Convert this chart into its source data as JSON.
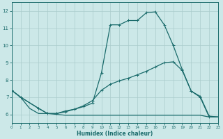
{
  "xlabel": "Humidex (Indice chaleur)",
  "xlim": [
    0,
    23
  ],
  "ylim": [
    5.5,
    12.5
  ],
  "yticks": [
    6,
    7,
    8,
    9,
    10,
    11,
    12
  ],
  "xticks": [
    0,
    1,
    2,
    3,
    4,
    5,
    6,
    7,
    8,
    9,
    10,
    11,
    12,
    13,
    14,
    15,
    16,
    17,
    18,
    19,
    20,
    21,
    22,
    23
  ],
  "background_color": "#cce8e8",
  "grid_color": "#aacccc",
  "line_color": "#1a6b6b",
  "line1_x": [
    0,
    1,
    3,
    4,
    5,
    6,
    7,
    8,
    9,
    10,
    11,
    12,
    13,
    14,
    15,
    16,
    17,
    18,
    19,
    20,
    21,
    22,
    23
  ],
  "line1_y": [
    7.4,
    7.0,
    6.35,
    6.05,
    6.05,
    6.15,
    6.3,
    6.45,
    6.65,
    8.4,
    11.2,
    11.2,
    11.45,
    11.45,
    11.9,
    11.95,
    11.2,
    10.0,
    8.6,
    7.35,
    7.05,
    5.9,
    5.85
  ],
  "line2_x": [
    0,
    1,
    3,
    4,
    5,
    6,
    7,
    8,
    9,
    10,
    11,
    12,
    13,
    14,
    15,
    16,
    17,
    18,
    19,
    20,
    21,
    22,
    23
  ],
  "line2_y": [
    7.4,
    7.0,
    6.35,
    6.05,
    6.05,
    6.2,
    6.3,
    6.5,
    6.8,
    7.4,
    7.75,
    7.95,
    8.1,
    8.3,
    8.5,
    8.75,
    9.0,
    9.05,
    8.55,
    7.35,
    7.0,
    5.85,
    5.85
  ],
  "line3_x": [
    0,
    1,
    2,
    3,
    4,
    5,
    6,
    7,
    8,
    9,
    10,
    11,
    12,
    13,
    14,
    15,
    16,
    17,
    18,
    19,
    20,
    21,
    22,
    23
  ],
  "line3_y": [
    7.4,
    7.0,
    6.35,
    6.05,
    6.05,
    6.0,
    5.95,
    5.95,
    5.95,
    5.95,
    5.95,
    5.95,
    5.95,
    5.95,
    5.95,
    5.95,
    5.95,
    5.95,
    5.95,
    5.95,
    5.95,
    5.95,
    5.85,
    5.85
  ]
}
